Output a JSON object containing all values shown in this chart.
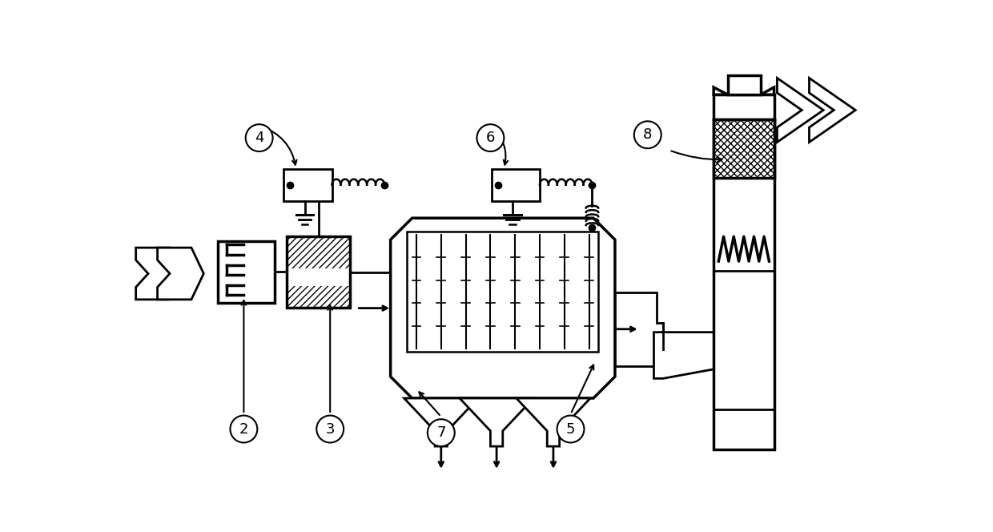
{
  "bg_color": "#ffffff",
  "lc": "#000000",
  "lw": 2.0,
  "tlw": 2.5,
  "fig_w": 12.4,
  "fig_h": 6.64,
  "dpi": 100
}
